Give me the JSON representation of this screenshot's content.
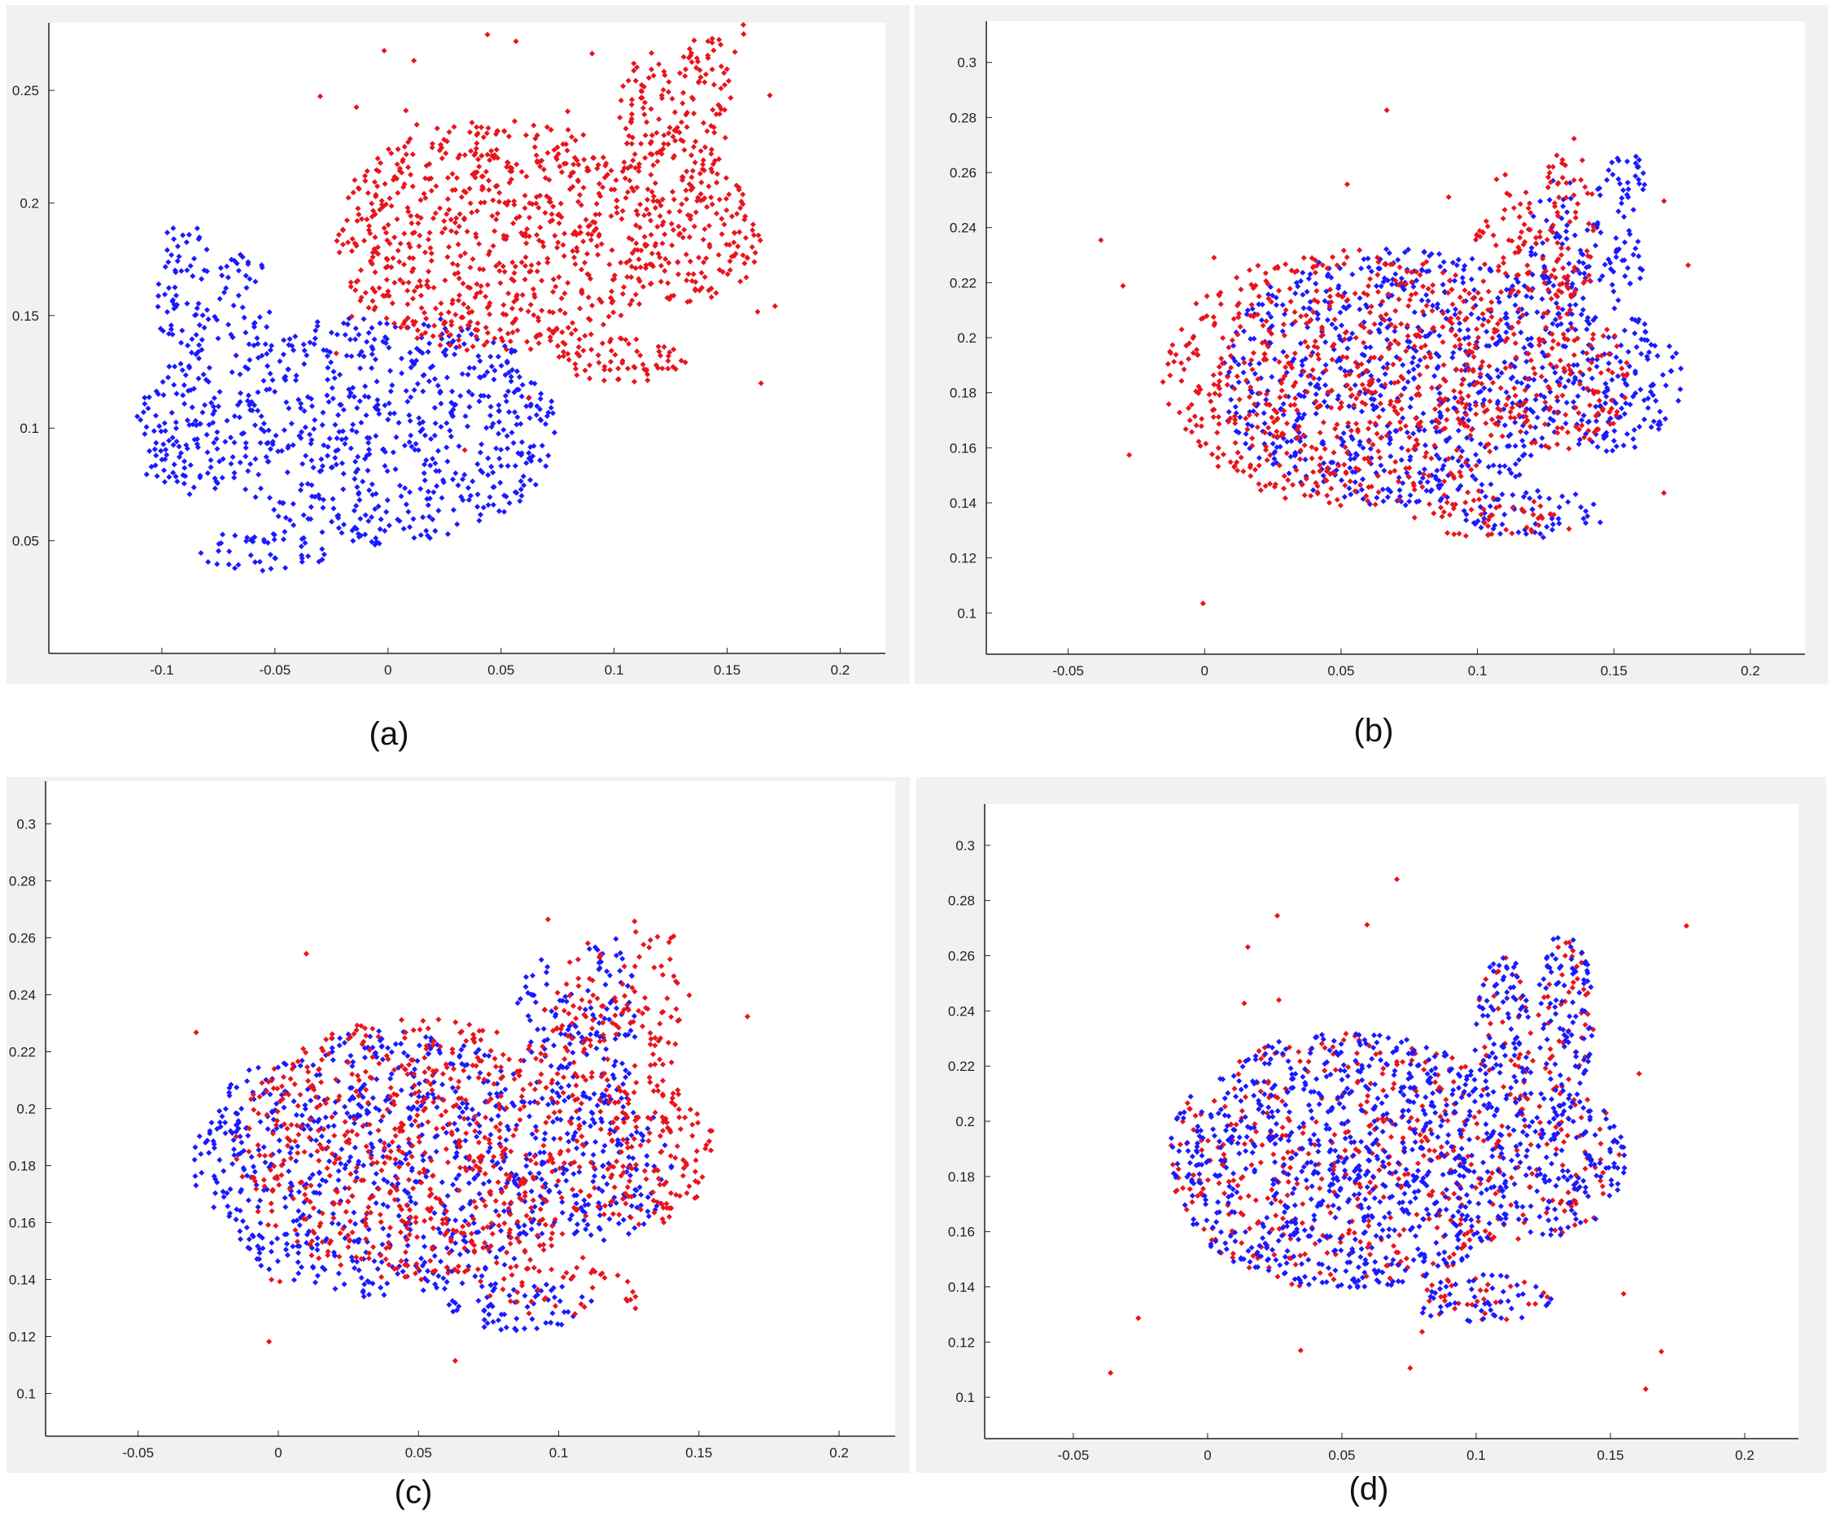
{
  "figure": {
    "colors": {
      "source": "#1a1aff",
      "target": "#e8141c",
      "plot_bg": "#ffffff",
      "frame_bg": "#f1f1f1",
      "axis": "#222222"
    }
  },
  "panels": [
    {
      "id": "a",
      "caption": "(a)",
      "chart_data": {
        "type": "scatter",
        "xlim": [
          -0.15,
          0.22
        ],
        "ylim": [
          0.0,
          0.28
        ],
        "xticks": [
          -0.1,
          -0.05,
          0,
          0.05,
          0.1,
          0.15,
          0.2
        ],
        "xtick_labels": [
          "-0.1",
          "-0.05",
          "0",
          "0.05",
          "0.1",
          "0.15",
          "0.2"
        ],
        "yticks": [
          0.05,
          0.1,
          0.15,
          0.2,
          0.25
        ],
        "ytick_labels": [
          "0.05",
          "0.1",
          "0.15",
          "0.2",
          "0.25"
        ],
        "grid": false,
        "series": [
          {
            "color": "blue",
            "shape": "bunny",
            "mirror": false,
            "center": [
              -0.02,
              0.105
            ],
            "scale": 1.0,
            "count": 900,
            "outliers": 0
          },
          {
            "color": "red",
            "shape": "bunny",
            "mirror": true,
            "center": [
              0.07,
              0.19
            ],
            "scale": 1.0,
            "count": 1100,
            "outliers": 30
          }
        ]
      }
    },
    {
      "id": "b",
      "caption": "(b)",
      "chart_data": {
        "type": "scatter",
        "xlim": [
          -0.08,
          0.22
        ],
        "ylim": [
          0.085,
          0.315
        ],
        "xticks": [
          -0.05,
          0,
          0.05,
          0.1,
          0.15,
          0.2
        ],
        "xtick_labels": [
          "-0.05",
          "0",
          "0.05",
          "0.1",
          "0.15",
          "0.2"
        ],
        "yticks": [
          0.1,
          0.12,
          0.14,
          0.16,
          0.18,
          0.2,
          0.22,
          0.24,
          0.26,
          0.28,
          0.3
        ],
        "ytick_labels": [
          "0.1",
          "0.12",
          "0.14",
          "0.16",
          "0.18",
          "0.2",
          "0.22",
          "0.24",
          "0.26",
          "0.28",
          "0.3"
        ],
        "grid": false,
        "series": [
          {
            "color": "blue",
            "shape": "bunny",
            "mirror": true,
            "center": [
              0.09,
              0.19
            ],
            "scale": 0.9,
            "count": 1100,
            "outliers": 0
          },
          {
            "color": "red",
            "shape": "bunny",
            "mirror": true,
            "center": [
              0.07,
              0.19
            ],
            "scale": 0.9,
            "count": 1000,
            "outliers": 25
          }
        ]
      }
    },
    {
      "id": "c",
      "caption": "(c)",
      "chart_data": {
        "type": "scatter",
        "xlim": [
          -0.083,
          0.22
        ],
        "ylim": [
          0.085,
          0.315
        ],
        "xticks": [
          -0.05,
          0,
          0.05,
          0.1,
          0.15,
          0.2
        ],
        "xtick_labels": [
          "-0.05",
          "0",
          "0.05",
          "0.1",
          "0.15",
          "0.2"
        ],
        "yticks": [
          0.1,
          0.12,
          0.14,
          0.16,
          0.18,
          0.2,
          0.22,
          0.24,
          0.26,
          0.28,
          0.3
        ],
        "ytick_labels": [
          "0.1",
          "0.12",
          "0.14",
          "0.16",
          "0.18",
          "0.2",
          "0.22",
          "0.24",
          "0.26",
          "0.28",
          "0.3"
        ],
        "grid": false,
        "series": [
          {
            "color": "blue",
            "shape": "bunny",
            "mirror": true,
            "center": [
              0.055,
              0.185
            ],
            "scale": 0.9,
            "count": 1100,
            "outliers": 0
          },
          {
            "color": "red",
            "shape": "bunny",
            "mirror": true,
            "center": [
              0.07,
              0.19
            ],
            "scale": 0.9,
            "count": 1000,
            "outliers": 25
          }
        ]
      }
    },
    {
      "id": "d",
      "caption": "(d)",
      "chart_data": {
        "type": "scatter",
        "xlim": [
          -0.083,
          0.22
        ],
        "ylim": [
          0.085,
          0.315
        ],
        "xticks": [
          -0.05,
          0,
          0.05,
          0.1,
          0.15,
          0.2
        ],
        "xtick_labels": [
          "-0.05",
          "0",
          "0.05",
          "0.1",
          "0.15",
          "0.2"
        ],
        "yticks": [
          0.1,
          0.12,
          0.14,
          0.16,
          0.18,
          0.2,
          0.22,
          0.24,
          0.26,
          0.28,
          0.3
        ],
        "ytick_labels": [
          "0.1",
          "0.12",
          "0.14",
          "0.16",
          "0.18",
          "0.2",
          "0.22",
          "0.24",
          "0.26",
          "0.28",
          "0.3"
        ],
        "grid": false,
        "series": [
          {
            "color": "red",
            "shape": "bunny",
            "mirror": true,
            "center": [
              0.07,
              0.19
            ],
            "scale": 0.9,
            "count": 600,
            "outliers": 25
          },
          {
            "color": "blue",
            "shape": "bunny",
            "mirror": true,
            "center": [
              0.07,
              0.19
            ],
            "scale": 0.9,
            "count": 1200,
            "outliers": 0
          }
        ]
      }
    }
  ]
}
